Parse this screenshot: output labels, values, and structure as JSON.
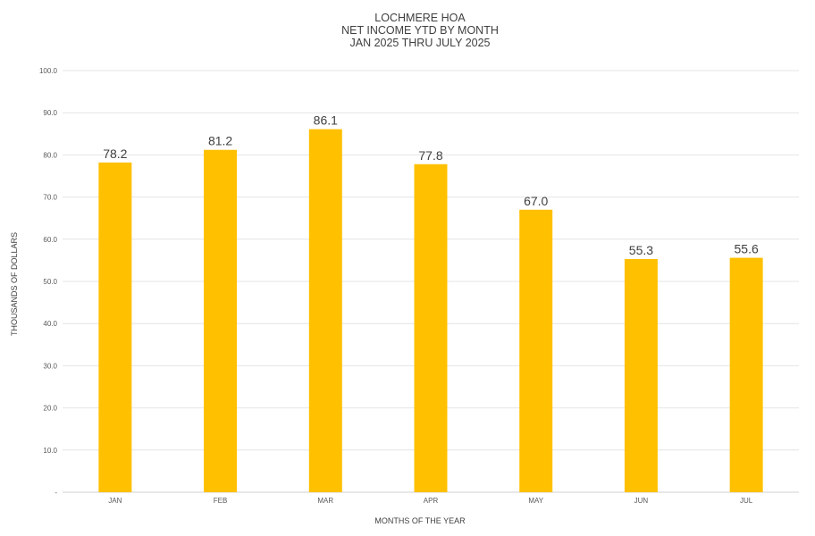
{
  "chart_data": {
    "type": "bar",
    "title_lines": [
      "LOCHMERE HOA",
      "NET INCOME YTD BY MONTH",
      "JAN 2025 THRU JULY 2025"
    ],
    "categories": [
      "JAN",
      "FEB",
      "MAR",
      "APR",
      "MAY",
      "JUN",
      "JUL"
    ],
    "values": [
      78.2,
      81.2,
      86.1,
      77.8,
      67.0,
      55.3,
      55.6
    ],
    "data_labels": [
      "78.2",
      "81.2",
      "86.1",
      "77.8",
      "67.0",
      "55.3",
      "55.6"
    ],
    "xlabel": "MONTHS OF THE YEAR",
    "ylabel": "THOUSANDS OF DOLLARS",
    "ylim": [
      0,
      100
    ],
    "yticks": [
      0,
      10,
      20,
      30,
      40,
      50,
      60,
      70,
      80,
      90,
      100
    ],
    "ytick_labels": [
      "-",
      "10.0",
      "20.0",
      "30.0",
      "40.0",
      "50.0",
      "60.0",
      "70.0",
      "80.0",
      "90.0",
      "100.0"
    ],
    "grid": true,
    "legend": "none",
    "bar_color": "#FFC000"
  }
}
